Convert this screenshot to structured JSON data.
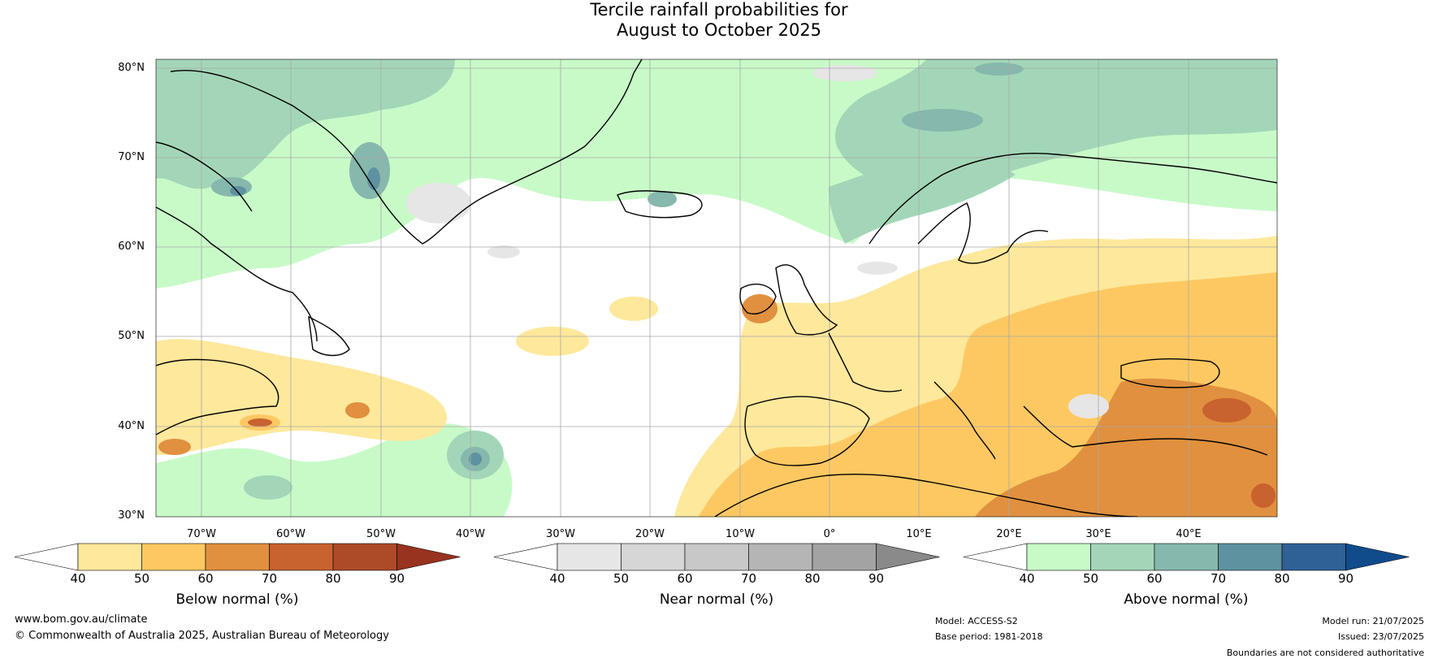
{
  "title": {
    "line1": "Tercile rainfall probabilities for",
    "line2": "August to October 2025"
  },
  "map": {
    "lat_labels": [
      "80°N",
      "70°N",
      "60°N",
      "50°N",
      "40°N",
      "30°N"
    ],
    "lon_labels": [
      "70°W",
      "60°W",
      "50°W",
      "40°W",
      "30°W",
      "20°W",
      "10°W",
      "0°",
      "10°E",
      "20°E",
      "30°E",
      "40°E"
    ],
    "extent": {
      "lon_min": -77.5,
      "lon_max": 47.5,
      "lat_min": 30,
      "lat_max": 80
    }
  },
  "colorbars": [
    {
      "title": "Below normal (%)",
      "ticks": [
        "40",
        "50",
        "60",
        "70",
        "80",
        "90"
      ],
      "colors": [
        "#ffffff",
        "#fee89b",
        "#fdc862",
        "#e0903e",
        "#c8622f",
        "#ad4a28",
        "#97331f"
      ]
    },
    {
      "title": "Near normal (%)",
      "ticks": [
        "40",
        "50",
        "60",
        "70",
        "80",
        "90"
      ],
      "colors": [
        "#ffffff",
        "#e6e6e6",
        "#d6d6d6",
        "#c8c8c8",
        "#b5b5b5",
        "#a3a3a3",
        "#8a8a8a"
      ]
    },
    {
      "title": "Above normal (%)",
      "ticks": [
        "40",
        "50",
        "60",
        "70",
        "80",
        "90"
      ],
      "colors": [
        "#ffffff",
        "#c8fac8",
        "#a3d6b8",
        "#86b8ad",
        "#5e92a0",
        "#2f6096",
        "#104c8c"
      ]
    }
  ],
  "footer": {
    "website": "www.bom.gov.au/climate",
    "copyright": "© Commonwealth of Australia 2025, Australian Bureau of Meteorology",
    "model": "Model: ACCESS-S2",
    "base_period": "Base period: 1981-2018",
    "model_run": "Model run: 21/07/2025",
    "issued": "Issued: 23/07/2025",
    "disclaimer": "Boundaries are not considered authoritative"
  }
}
